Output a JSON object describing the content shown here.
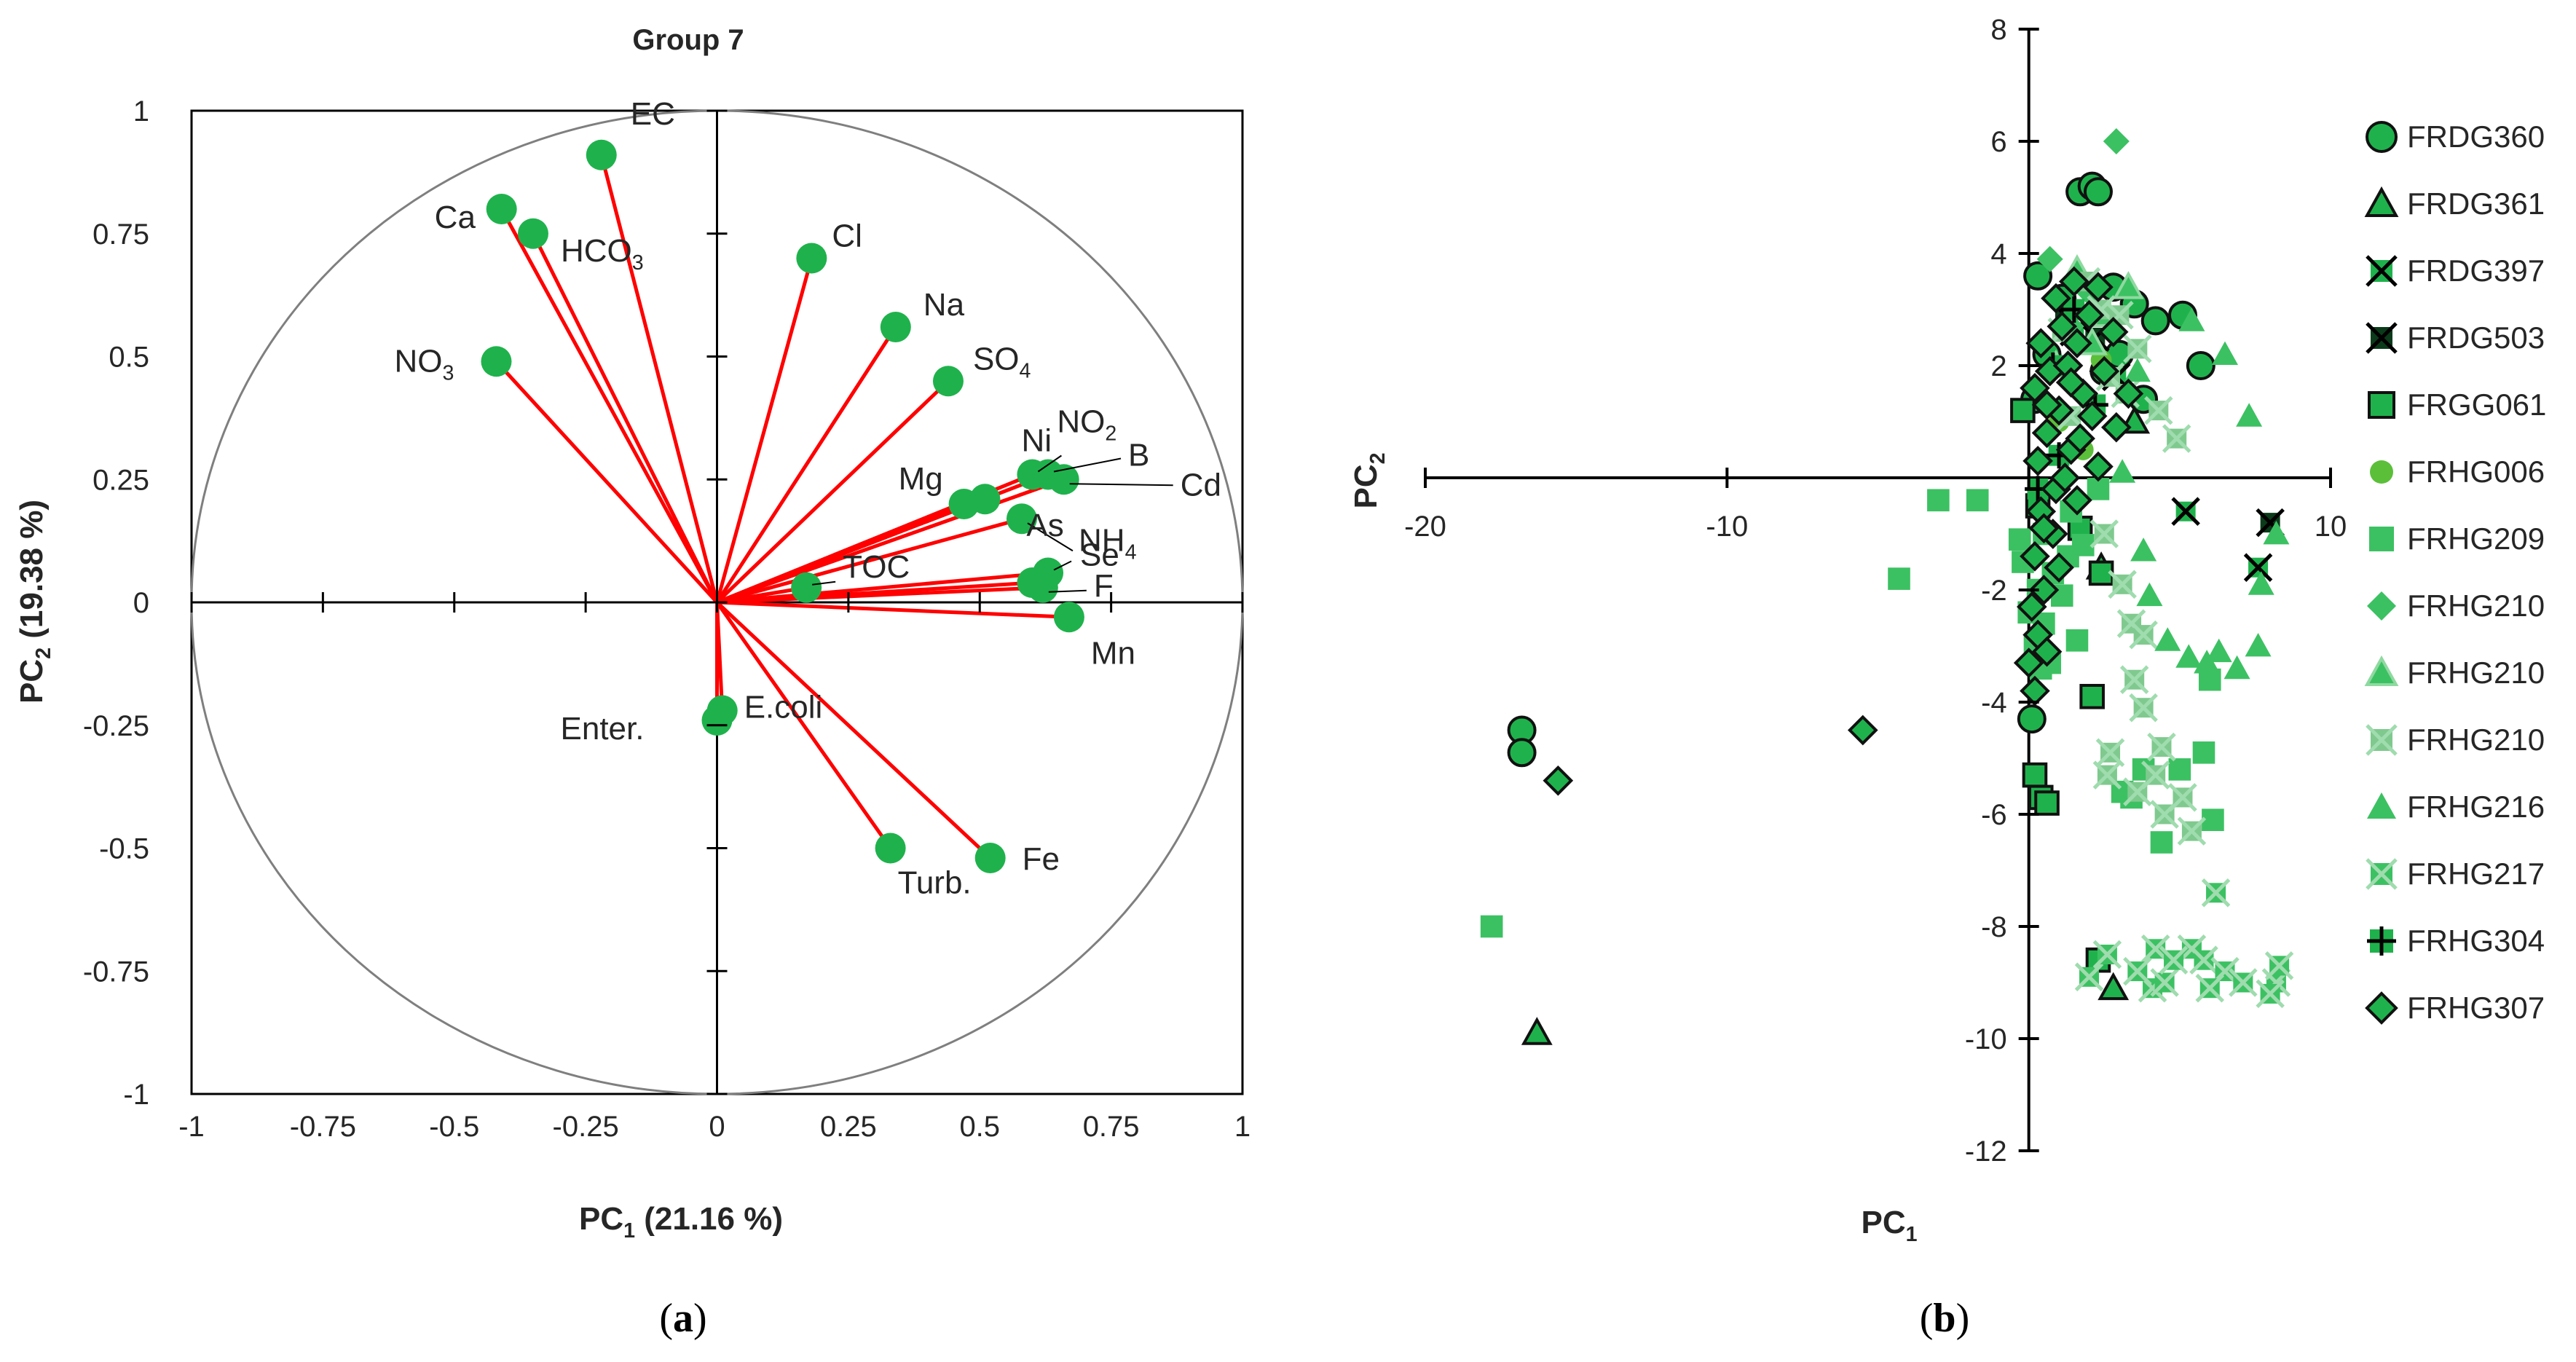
{
  "colors": {
    "vector": "#ff0000",
    "point": "#1fb24c",
    "light": "#3cc162",
    "outline": "#111111",
    "axis": "#000000",
    "circle": "#7f7f7f",
    "light_x": "#7fc98e"
  },
  "panel_a": {
    "caption": "a",
    "chart_data": {
      "type": "scatter",
      "title": "Group 7",
      "xlabel": "PC",
      "xlabel_sub": "1",
      "xlabel_tail": " (21.16 %)",
      "ylabel": "PC",
      "ylabel_sub": "2",
      "ylabel_tail": " (19.38 %)",
      "xlim": [
        -1,
        1
      ],
      "ylim": [
        -1,
        1
      ],
      "xticks": [
        "-1",
        "-0.75",
        "-0.5",
        "-0.25",
        "0",
        "0.25",
        "0.5",
        "0.75",
        "1"
      ],
      "yticks": [
        "1",
        "0.75",
        "0.5",
        "0.25",
        "0",
        "-0.25",
        "-0.5",
        "-0.75",
        "-1"
      ],
      "loadings": [
        {
          "name": "EC",
          "x": -0.22,
          "y": 0.91
        },
        {
          "name": "Ca",
          "x": -0.41,
          "y": 0.8
        },
        {
          "name": "HCO",
          "sub": "3",
          "x": -0.35,
          "y": 0.75
        },
        {
          "name": "NO",
          "sub": "3",
          "x": -0.42,
          "y": 0.49
        },
        {
          "name": "Cl",
          "x": 0.18,
          "y": 0.7
        },
        {
          "name": "Na",
          "x": 0.34,
          "y": 0.56
        },
        {
          "name": "SO",
          "sub": "4",
          "x": 0.44,
          "y": 0.45
        },
        {
          "name": "Ni",
          "x": 0.51,
          "y": 0.21
        },
        {
          "name": "NO",
          "sub": "2",
          "x": 0.6,
          "y": 0.26
        },
        {
          "name": "B",
          "x": 0.63,
          "y": 0.26
        },
        {
          "name": "Cd",
          "x": 0.66,
          "y": 0.25
        },
        {
          "name": "Mg",
          "x": 0.47,
          "y": 0.2
        },
        {
          "name": "Se",
          "x": 0.58,
          "y": 0.17
        },
        {
          "name": "As",
          "x": 0.6,
          "y": 0.04
        },
        {
          "name": "NH",
          "sub": "4",
          "x": 0.63,
          "y": 0.06
        },
        {
          "name": "TOC",
          "x": 0.17,
          "y": 0.03
        },
        {
          "name": "F",
          "x": 0.62,
          "y": 0.03
        },
        {
          "name": "Mn",
          "x": 0.67,
          "y": -0.03
        },
        {
          "name": "E.coli",
          "x": 0.01,
          "y": -0.22
        },
        {
          "name": "Enter.",
          "x": 0.0,
          "y": -0.24
        },
        {
          "name": "Turb.",
          "x": 0.33,
          "y": -0.5
        },
        {
          "name": "Fe",
          "x": 0.52,
          "y": -0.52
        }
      ]
    }
  },
  "panel_b": {
    "caption": "b",
    "chart_data": {
      "type": "scatter",
      "xlabel": "PC",
      "xlabel_sub": "1",
      "ylabel": "PC",
      "ylabel_sub": "2",
      "xlim": [
        -20,
        10
      ],
      "ylim": [
        -12,
        8
      ],
      "xticks": [
        "-20",
        "-10",
        "10"
      ],
      "yticks": [
        "8",
        "6",
        "4",
        "2",
        "-2",
        "-4",
        "-6",
        "-8",
        "-10",
        "-12"
      ],
      "legend_position": "right",
      "series": [
        {
          "name": "FRDG360",
          "marker": "circle-dark",
          "points": [
            [
              -16.8,
              -4.5
            ],
            [
              -16.8,
              -4.9
            ],
            [
              0.3,
              3.6
            ],
            [
              1.7,
              5.1
            ],
            [
              2.1,
              5.2
            ],
            [
              2.3,
              5.1
            ],
            [
              2.8,
              3.4
            ],
            [
              3.5,
              3.1
            ],
            [
              4.2,
              2.8
            ],
            [
              5.1,
              2.9
            ],
            [
              5.7,
              2.0
            ],
            [
              0.1,
              -4.3
            ],
            [
              0.2,
              1.4
            ],
            [
              0.6,
              2.2
            ],
            [
              1.1,
              3.2
            ],
            [
              2.5,
              1.9
            ],
            [
              3.0,
              2.2
            ],
            [
              3.8,
              1.4
            ]
          ]
        },
        {
          "name": "FRDG361",
          "marker": "triangle-dark",
          "points": [
            [
              -16.3,
              -9.9
            ],
            [
              2.8,
              -9.1
            ],
            [
              3.5,
              1.0
            ],
            [
              2.4,
              -1.6
            ]
          ]
        },
        {
          "name": "FRDG397",
          "marker": "x-dark",
          "points": [
            [
              5.2,
              -0.6
            ],
            [
              7.6,
              -1.6
            ],
            [
              1.5,
              2.6
            ],
            [
              2.9,
              1.8
            ]
          ]
        },
        {
          "name": "FRDG503",
          "marker": "x-black",
          "points": [
            [
              8.0,
              -0.8
            ],
            [
              1.2,
              2.9
            ],
            [
              2.2,
              2.5
            ]
          ]
        },
        {
          "name": "FRGG061",
          "marker": "square-dark",
          "points": [
            [
              0.4,
              -5.7
            ],
            [
              0.2,
              -5.3
            ],
            [
              0.6,
              -5.8
            ],
            [
              2.3,
              -8.6
            ],
            [
              2.1,
              -3.9
            ],
            [
              2.4,
              -1.7
            ],
            [
              -0.2,
              1.2
            ],
            [
              0.3,
              -0.5
            ],
            [
              1.7,
              -0.9
            ]
          ]
        },
        {
          "name": "FRHG006",
          "marker": "circle-light",
          "points": [
            [
              1.0,
              1.0
            ],
            [
              1.8,
              0.5
            ],
            [
              2.4,
              2.1
            ]
          ]
        },
        {
          "name": "FRHG209",
          "marker": "square-light",
          "points": [
            [
              -17.8,
              -8.0
            ],
            [
              -4.3,
              -1.8
            ],
            [
              -3.0,
              -0.4
            ],
            [
              -1.7,
              -0.4
            ],
            [
              -0.3,
              -1.1
            ],
            [
              0.0,
              -2.4
            ],
            [
              0.2,
              -3.0
            ],
            [
              0.4,
              -3.4
            ],
            [
              0.5,
              -2.6
            ],
            [
              0.7,
              -3.3
            ],
            [
              1.3,
              -1.4
            ],
            [
              1.1,
              -2.1
            ],
            [
              1.6,
              -2.9
            ],
            [
              3.1,
              -5.6
            ],
            [
              3.4,
              -5.7
            ],
            [
              3.8,
              -5.2
            ],
            [
              5.0,
              -5.2
            ],
            [
              4.4,
              -6.5
            ],
            [
              5.8,
              -4.9
            ],
            [
              6.1,
              -6.1
            ],
            [
              6.0,
              -3.6
            ],
            [
              0.8,
              -1.7
            ],
            [
              1.4,
              -0.6
            ],
            [
              0.5,
              -1.0
            ],
            [
              0.3,
              -2.0
            ],
            [
              -0.2,
              -1.5
            ],
            [
              1.8,
              -1.2
            ],
            [
              2.3,
              -0.2
            ]
          ]
        },
        {
          "name": "FRHG210",
          "marker": "diamond-light",
          "points": [
            [
              2.9,
              6.0
            ],
            [
              0.7,
              3.9
            ],
            [
              1.4,
              2.7
            ],
            [
              2.0,
              3.3
            ]
          ]
        },
        {
          "name": "FRHG210",
          "marker": "triangle-light-outline",
          "points": [
            [
              1.6,
              3.7
            ],
            [
              2.6,
              2.9
            ],
            [
              2.1,
              2.4
            ],
            [
              3.3,
              3.4
            ],
            [
              0.9,
              2.0
            ]
          ]
        },
        {
          "name": "FRHG210",
          "marker": "x-light",
          "points": [
            [
              1.9,
              3.5
            ],
            [
              2.4,
              3.0
            ],
            [
              3.0,
              2.9
            ],
            [
              3.6,
              2.3
            ],
            [
              4.3,
              1.2
            ],
            [
              4.9,
              0.7
            ],
            [
              1.1,
              2.6
            ],
            [
              2.7,
              1.8
            ],
            [
              3.2,
              1.5
            ],
            [
              1.4,
              1.1
            ],
            [
              2.5,
              -1.0
            ],
            [
              3.1,
              -1.9
            ],
            [
              3.4,
              -2.6
            ],
            [
              3.8,
              -2.8
            ],
            [
              3.5,
              -3.6
            ],
            [
              3.8,
              -4.1
            ],
            [
              4.4,
              -4.8
            ],
            [
              2.7,
              -4.9
            ],
            [
              2.6,
              -5.3
            ],
            [
              3.6,
              -5.6
            ],
            [
              4.5,
              -6.0
            ],
            [
              5.4,
              -6.3
            ],
            [
              4.2,
              -5.3
            ],
            [
              5.1,
              -5.7
            ]
          ]
        },
        {
          "name": "FRHG216",
          "marker": "triangle-light",
          "points": [
            [
              5.4,
              2.8
            ],
            [
              6.5,
              2.2
            ],
            [
              7.3,
              1.1
            ],
            [
              8.2,
              -1.0
            ],
            [
              7.7,
              -1.9
            ],
            [
              3.6,
              1.9
            ],
            [
              4.0,
              -2.1
            ],
            [
              5.3,
              -3.2
            ],
            [
              5.9,
              -3.3
            ],
            [
              6.3,
              -3.1
            ],
            [
              6.9,
              -3.4
            ],
            [
              7.6,
              -3.0
            ],
            [
              4.6,
              -2.9
            ],
            [
              3.8,
              -1.3
            ],
            [
              3.1,
              0.1
            ]
          ]
        },
        {
          "name": "FRHG217",
          "marker": "x-light2",
          "points": [
            [
              6.2,
              -7.4
            ],
            [
              4.2,
              -8.4
            ],
            [
              5.4,
              -8.4
            ],
            [
              5.8,
              -8.6
            ],
            [
              6.5,
              -8.8
            ],
            [
              7.1,
              -9.0
            ],
            [
              8.2,
              -9.0
            ],
            [
              8.3,
              -8.7
            ],
            [
              4.1,
              -9.1
            ],
            [
              3.6,
              -8.8
            ],
            [
              2.0,
              -8.9
            ],
            [
              4.5,
              -9.0
            ],
            [
              2.6,
              -8.5
            ],
            [
              6.0,
              -9.1
            ],
            [
              8.0,
              -9.2
            ],
            [
              4.8,
              -8.6
            ]
          ]
        },
        {
          "name": "FRHG304",
          "marker": "plus-dark",
          "points": [
            [
              1.5,
              3.0
            ],
            [
              0.8,
              2.0
            ],
            [
              2.2,
              1.3
            ],
            [
              1.0,
              0.4
            ],
            [
              0.3,
              -0.2
            ]
          ]
        },
        {
          "name": "FRHG307",
          "marker": "diamond-dark",
          "points": [
            [
              -5.5,
              -4.5
            ],
            [
              -15.6,
              -5.4
            ],
            [
              0.2,
              -3.8
            ],
            [
              0.0,
              -3.3
            ],
            [
              0.3,
              -2.8
            ],
            [
              0.6,
              -3.1
            ],
            [
              0.5,
              -2.0
            ],
            [
              0.2,
              -1.4
            ],
            [
              0.8,
              -1.0
            ],
            [
              0.4,
              -0.6
            ],
            [
              0.9,
              -0.2
            ],
            [
              1.4,
              0.5
            ],
            [
              0.3,
              0.3
            ],
            [
              0.6,
              0.8
            ],
            [
              1.0,
              1.2
            ],
            [
              0.2,
              1.6
            ],
            [
              0.7,
              1.9
            ],
            [
              1.3,
              2.0
            ],
            [
              1.8,
              1.5
            ],
            [
              0.4,
              2.4
            ],
            [
              1.1,
              2.7
            ],
            [
              1.6,
              2.4
            ],
            [
              2.0,
              2.9
            ],
            [
              0.9,
              3.2
            ],
            [
              1.5,
              3.5
            ],
            [
              2.3,
              3.4
            ],
            [
              2.8,
              2.6
            ],
            [
              2.5,
              1.9
            ],
            [
              2.1,
              1.1
            ],
            [
              1.7,
              0.7
            ],
            [
              1.2,
              0.0
            ],
            [
              0.5,
              -0.9
            ],
            [
              0.1,
              -2.3
            ],
            [
              1.0,
              -1.6
            ],
            [
              1.6,
              -0.4
            ],
            [
              2.3,
              0.2
            ],
            [
              2.9,
              0.9
            ],
            [
              3.3,
              1.5
            ],
            [
              0.6,
              1.3
            ],
            [
              1.4,
              1.7
            ]
          ]
        }
      ]
    }
  }
}
